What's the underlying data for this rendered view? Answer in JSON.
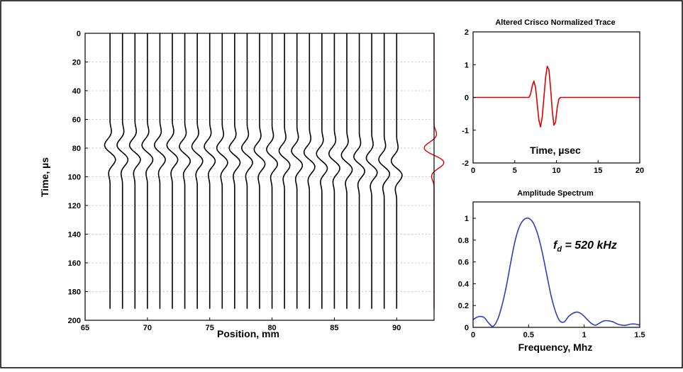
{
  "chart_data": [
    {
      "type": "line",
      "subtype": "seismic-wiggle",
      "title": "",
      "xlabel": "Position, mm",
      "ylabel": "Time, µs",
      "xlim": [
        65,
        93
      ],
      "ylim": [
        200,
        0
      ],
      "x_ticks": [
        65,
        70,
        75,
        80,
        85,
        90
      ],
      "y_ticks": [
        0,
        20,
        40,
        60,
        80,
        100,
        120,
        140,
        160,
        180,
        200
      ],
      "grid": "horizontal dotted",
      "traces": {
        "positions": [
          67,
          68,
          69,
          70,
          71,
          72,
          73,
          74,
          75,
          76,
          77,
          78,
          79,
          80,
          81,
          82,
          83,
          84,
          85,
          86,
          87,
          88,
          89,
          90
        ],
        "time_range": [
          0,
          192
        ],
        "event_start": [
          60,
          60,
          60,
          60,
          60,
          60,
          61,
          61,
          61,
          62,
          62,
          62,
          63,
          63,
          64,
          64,
          65,
          66,
          66,
          67,
          68,
          69,
          70,
          71
        ],
        "amplitude_mm": 0.5,
        "color": "#000000"
      },
      "reference_trace": {
        "position": 93,
        "event_start": 62,
        "amplitude_mm": 0.9,
        "color": "#e00000"
      }
    },
    {
      "type": "line",
      "title": "Altered Crisco Normalized Trace",
      "xlabel": "Time,  µsec",
      "ylabel": "",
      "xlim": [
        0,
        20
      ],
      "ylim": [
        -2,
        2
      ],
      "x_ticks": [
        0,
        5,
        10,
        15,
        20
      ],
      "y_ticks": [
        -2,
        -1,
        0,
        1,
        2
      ],
      "series": [
        {
          "color": "#e00000",
          "x": [
            0,
            6.7,
            6.9,
            7.1,
            7.3,
            7.5,
            7.7,
            7.9,
            8.1,
            8.3,
            8.5,
            8.7,
            8.9,
            9.1,
            9.3,
            9.5,
            9.7,
            9.9,
            10.1,
            10.3,
            10.5,
            10.7,
            11.0,
            20
          ],
          "y": [
            0,
            0,
            0.1,
            0.35,
            0.5,
            0.3,
            -0.2,
            -0.7,
            -0.9,
            -0.6,
            0.0,
            0.6,
            0.95,
            0.85,
            0.3,
            -0.4,
            -0.85,
            -0.75,
            -0.3,
            -0.05,
            0.0,
            0.0,
            0.0,
            0
          ]
        }
      ]
    },
    {
      "type": "line",
      "title": "Amplitude Spectrum",
      "xlabel": "Frequency, Mhz",
      "ylabel": "",
      "xlim": [
        0,
        1.5
      ],
      "ylim": [
        0,
        1.15
      ],
      "x_ticks": [
        0,
        0.5,
        1,
        1.5
      ],
      "y_ticks": [
        0,
        0.2,
        0.4,
        0.6,
        0.8,
        1
      ],
      "annotation": {
        "symbol": "f",
        "subscript": "d",
        "text": " = 520 kHz"
      },
      "series": [
        {
          "color": "#2a3fbf",
          "x": [
            0,
            0.03,
            0.06,
            0.1,
            0.14,
            0.18,
            0.22,
            0.26,
            0.3,
            0.34,
            0.38,
            0.42,
            0.46,
            0.5,
            0.54,
            0.58,
            0.62,
            0.66,
            0.7,
            0.74,
            0.78,
            0.82,
            0.86,
            0.9,
            0.94,
            0.98,
            1.02,
            1.06,
            1.1,
            1.14,
            1.18,
            1.22,
            1.26,
            1.3,
            1.34,
            1.38,
            1.42,
            1.46,
            1.5
          ],
          "y": [
            0.07,
            0.09,
            0.1,
            0.09,
            0.04,
            0.01,
            0.07,
            0.2,
            0.38,
            0.6,
            0.8,
            0.93,
            0.99,
            1.0,
            0.96,
            0.86,
            0.7,
            0.5,
            0.3,
            0.15,
            0.06,
            0.05,
            0.1,
            0.13,
            0.14,
            0.12,
            0.08,
            0.04,
            0.02,
            0.04,
            0.06,
            0.06,
            0.05,
            0.03,
            0.02,
            0.02,
            0.03,
            0.03,
            0.02
          ]
        }
      ]
    }
  ]
}
